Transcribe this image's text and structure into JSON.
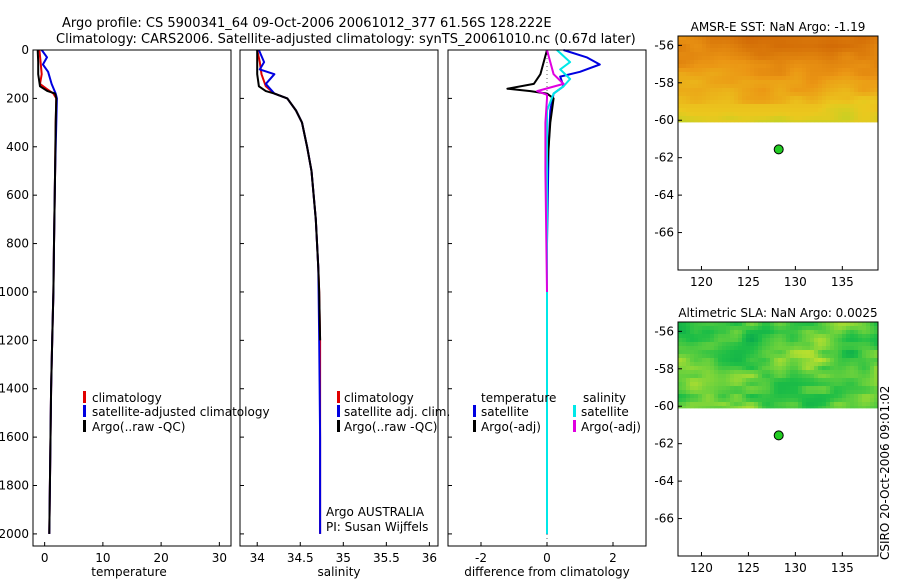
{
  "header": {
    "title_line1": "Argo profile: CS 5900341_64 09-Oct-2006 20061012_377 61.56S 128.222E",
    "title_line2": "Climatology: CARS2006. Satellite-adjusted climatology: synTS_20061010.nc (0.67d later)"
  },
  "watermark": "CSIRO 20-Oct-2006 09:01:02",
  "colors": {
    "climatology": "#e00000",
    "satellite": "#0000e0",
    "argo": "#000000",
    "cyan": "#00e8e8",
    "magenta": "#e000e0",
    "float_marker": "#22cc22"
  },
  "chart_data": [
    {
      "type": "line",
      "id": "temperature",
      "xlabel": "temperature",
      "ylabel": "",
      "xlim": [
        -2,
        32
      ],
      "ylim": [
        2050,
        0
      ],
      "y_inverted": true,
      "xticks": [
        0,
        10,
        20,
        30
      ],
      "yticks": [
        0,
        200,
        400,
        600,
        800,
        1000,
        1200,
        1400,
        1600,
        1800,
        2000
      ],
      "legend_position": "center-right",
      "series": [
        {
          "name": "climatology",
          "color": "#e00000",
          "x": [
            -0.9,
            -0.7,
            -0.5,
            -0.8,
            0.3,
            1.5,
            2.0,
            1.9,
            1.8,
            1.6,
            1.5,
            1.3,
            1.1,
            1.0,
            0.9,
            0.8
          ],
          "y": [
            0,
            50,
            100,
            140,
            160,
            180,
            200,
            300,
            500,
            800,
            1000,
            1200,
            1400,
            1600,
            1800,
            2000
          ]
        },
        {
          "name": "satellite-adjusted climatology",
          "color": "#0000e0",
          "x": [
            -0.5,
            0.4,
            -0.3,
            0.6,
            1.2,
            1.9,
            2.1,
            2.0,
            1.8,
            1.6,
            1.5,
            1.3,
            1.1,
            1.0,
            0.9,
            0.8
          ],
          "y": [
            0,
            30,
            60,
            90,
            140,
            180,
            200,
            300,
            500,
            800,
            1000,
            1200,
            1400,
            1600,
            1800,
            2000
          ]
        },
        {
          "name": "Argo(..raw -QC)",
          "color": "#000000",
          "x": [
            -1.2,
            -1.1,
            -1.1,
            -0.8,
            0.5,
            1.8,
            2.0,
            1.9,
            1.8,
            1.6,
            1.5,
            1.3,
            1.1,
            1.0,
            0.9,
            0.8
          ],
          "y": [
            0,
            50,
            100,
            150,
            170,
            180,
            200,
            300,
            500,
            800,
            1000,
            1200,
            1400,
            1600,
            1800,
            2000
          ]
        }
      ]
    },
    {
      "type": "line",
      "id": "salinity",
      "xlabel": "salinity",
      "ylabel": "",
      "xlim": [
        33.8,
        36.1
      ],
      "ylim": [
        2050,
        0
      ],
      "y_inverted": true,
      "xticks": [
        34,
        34.5,
        35,
        35.5,
        36
      ],
      "legend_position": "center-right",
      "annotation_lines": [
        "Argo AUSTRALIA",
        "PI: Susan Wijffels"
      ],
      "series": [
        {
          "name": "climatology",
          "color": "#e00000",
          "x": [
            34.0,
            34.03,
            34.05,
            34.1,
            34.2,
            34.35,
            34.45,
            34.52,
            34.58,
            34.63,
            34.68,
            34.71,
            34.72,
            34.73,
            34.73,
            34.73
          ],
          "y": [
            0,
            50,
            100,
            150,
            180,
            200,
            250,
            300,
            400,
            500,
            700,
            900,
            1000,
            1200,
            1600,
            2000
          ]
        },
        {
          "name": "satellite adj. clim.",
          "color": "#0000e0",
          "x": [
            34.02,
            34.08,
            34.03,
            34.2,
            34.1,
            34.2,
            34.35,
            34.45,
            34.52,
            34.58,
            34.63,
            34.68,
            34.71,
            34.72,
            34.73,
            34.73
          ],
          "y": [
            0,
            50,
            80,
            100,
            140,
            180,
            200,
            250,
            300,
            400,
            500,
            700,
            900,
            1200,
            1600,
            2000
          ]
        },
        {
          "name": "Argo(..raw -QC)",
          "color": "#000000",
          "x": [
            34.0,
            34.0,
            34.02,
            34.1,
            34.2,
            34.35,
            34.45,
            34.52,
            34.58,
            34.63,
            34.68,
            34.71,
            34.72,
            34.73
          ],
          "y": [
            0,
            100,
            150,
            170,
            180,
            200,
            250,
            300,
            400,
            500,
            700,
            900,
            1000,
            1200
          ]
        }
      ]
    },
    {
      "type": "line",
      "id": "difference",
      "xlabel": "difference from climatology",
      "ylabel": "",
      "xlim": [
        -3,
        3
      ],
      "ylim": [
        2050,
        0
      ],
      "y_inverted": true,
      "xticks": [
        -2,
        0,
        2
      ],
      "legend_position": "center",
      "legend_group_headers": [
        "temperature",
        "salinity"
      ],
      "series": [
        {
          "name": "satellite",
          "group": "temperature",
          "color": "#0000e0",
          "x": [
            0.5,
            1.2,
            1.6,
            1.0,
            0.4,
            0.5,
            0.2,
            0.1,
            0.05,
            0.0,
            0.0,
            0.0
          ],
          "y": [
            0,
            30,
            60,
            90,
            110,
            150,
            180,
            250,
            400,
            800,
            1200,
            2000
          ]
        },
        {
          "name": "Argo(-adj)",
          "group": "temperature",
          "color": "#000000",
          "x": [
            0.0,
            -0.2,
            -0.4,
            -1.2,
            -0.5,
            0.0,
            0.2,
            0.1,
            0.0,
            0.0,
            0.0
          ],
          "y": [
            0,
            100,
            140,
            160,
            170,
            180,
            200,
            300,
            500,
            1000,
            1200
          ]
        },
        {
          "name": "satellite",
          "group": "salinity",
          "color": "#00e8e8",
          "x": [
            0.3,
            0.7,
            0.4,
            0.7,
            0.5,
            0.2,
            0.0,
            0.0,
            0.0,
            0.0
          ],
          "y": [
            0,
            50,
            80,
            120,
            150,
            180,
            250,
            400,
            1000,
            2000
          ]
        },
        {
          "name": "Argo(-adj)",
          "group": "salinity",
          "color": "#e000e0",
          "x": [
            0.0,
            0.2,
            0.5,
            -0.3,
            0.0,
            0.0,
            -0.05,
            -0.05,
            0.0
          ],
          "y": [
            0,
            100,
            140,
            170,
            185,
            200,
            300,
            500,
            1000
          ]
        }
      ]
    },
    {
      "type": "heatmap",
      "id": "sst_map",
      "title": "AMSR-E SST: NaN Argo: -1.19",
      "xlim": [
        117.5,
        138.8
      ],
      "ylim": [
        -68,
        -55.5
      ],
      "xticks": [
        120,
        125,
        130,
        135
      ],
      "yticks": [
        -56,
        -58,
        -60,
        -62,
        -64,
        -66
      ],
      "field_lat_range": [
        -60.1,
        -55.5
      ],
      "colormap": "sst",
      "float_marker": {
        "lon": 128.222,
        "lat": -61.56
      }
    },
    {
      "type": "heatmap",
      "id": "sla_map",
      "title": "Altimetric SLA: NaN Argo: 0.0025",
      "xlim": [
        117.5,
        138.8
      ],
      "ylim": [
        -68,
        -55.5
      ],
      "xticks": [
        120,
        125,
        130,
        135
      ],
      "yticks": [
        -56,
        -58,
        -60,
        -62,
        -64,
        -66
      ],
      "field_lat_range": [
        -60.1,
        -55.5
      ],
      "colormap": "sla",
      "float_marker": {
        "lon": 128.222,
        "lat": -61.56
      }
    }
  ]
}
